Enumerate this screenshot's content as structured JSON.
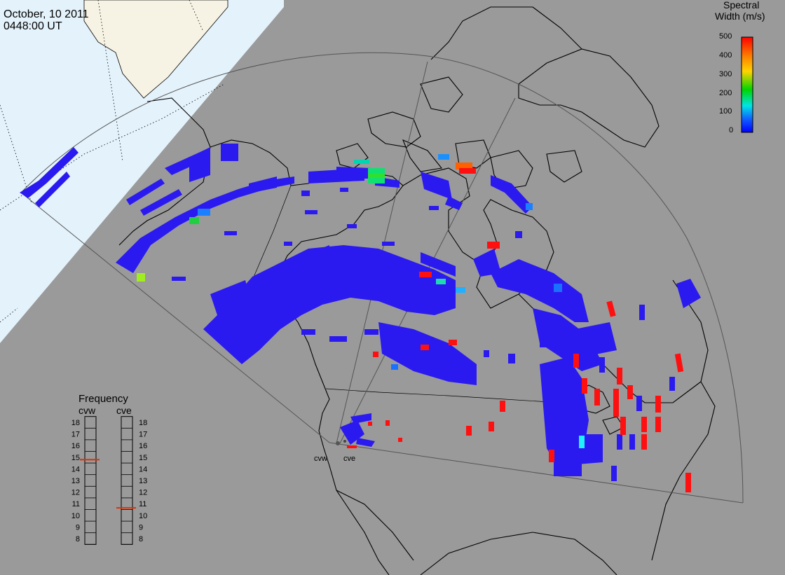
{
  "header": {
    "date": "October, 10 2011",
    "time": "0448:00 UT"
  },
  "colorbar": {
    "title_line1": "Spectral",
    "title_line2": "Width (m/s)",
    "ticks": [
      "500",
      "400",
      "300",
      "200",
      "100",
      "0"
    ],
    "stops": [
      "#ff0000",
      "#ff7f00",
      "#ffd400",
      "#00d400",
      "#00e5e5",
      "#1060ff",
      "#0000ff"
    ]
  },
  "frequency": {
    "title": "Frequency",
    "radar_left": "cvw",
    "radar_right": "cve",
    "scale": [
      "18",
      "17",
      "16",
      "15",
      "14",
      "13",
      "12",
      "11",
      "10",
      "9",
      "8"
    ],
    "marker_color": "#e03000",
    "left_marker_mhz": 14.85,
    "right_marker_mhz": 10.7
  },
  "radars": {
    "west_label": "cvw",
    "east_label": "cve"
  },
  "colors": {
    "ocean_gray": "#9a9a9a",
    "night_sky": "#e4f2fb",
    "daylight_land": "#f6f3e5",
    "scatter_low": "#2b1af0",
    "scatter_high": "#ff1010"
  }
}
